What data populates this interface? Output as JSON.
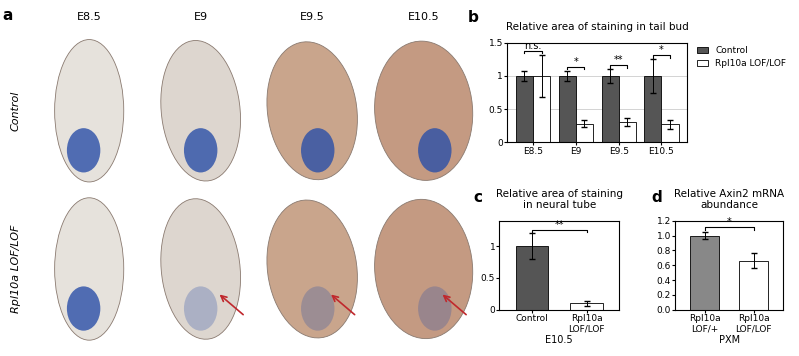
{
  "panel_a": {
    "label": "a",
    "columns": [
      "E8.5",
      "E9",
      "E9.5",
      "E10.5"
    ],
    "rows": [
      "Control",
      "Rpl10a LOF/LOF"
    ]
  },
  "chart_data": [
    {
      "panel": "b",
      "type": "bar",
      "title": "Relative area of staining in tail bud",
      "categories": [
        "E8.5",
        "E9",
        "E9.5",
        "E10.5"
      ],
      "series": [
        {
          "name": "Control",
          "color": "#555555",
          "values": [
            1.0,
            1.0,
            1.0,
            1.0
          ],
          "errors": [
            0.07,
            0.08,
            0.1,
            0.25
          ]
        },
        {
          "name": "Rpl10a LOF/LOF",
          "color": "#ffffff",
          "values": [
            1.0,
            0.28,
            0.3,
            0.27
          ],
          "errors": [
            0.32,
            0.05,
            0.06,
            0.07
          ]
        }
      ],
      "significance": [
        "n.s.",
        "*",
        "**",
        "*"
      ],
      "ylim": [
        0,
        1.5
      ],
      "yticks": [
        0,
        0.5,
        1,
        1.5
      ],
      "grid": true,
      "legend": "right"
    },
    {
      "panel": "c",
      "type": "bar",
      "title": "Relative area of staining\nin neural tube",
      "categories": [
        "Control",
        "Rpl10a LOF/LOF"
      ],
      "x_label": "E10.5",
      "values": [
        1.0,
        0.1
      ],
      "errors": [
        0.2,
        0.04
      ],
      "colors": [
        "#555555",
        "#ffffff"
      ],
      "significance": "**",
      "ylim": [
        0,
        1.4
      ],
      "yticks": [
        0,
        0.5,
        1
      ],
      "grid": false
    },
    {
      "panel": "d",
      "type": "bar",
      "title": "Relative Axin2 mRNA\nabundance",
      "categories": [
        "Rpl10a LOF/+",
        "Rpl10a LOF/LOF"
      ],
      "x_label": "PXM",
      "values": [
        1.0,
        0.66
      ],
      "errors": [
        0.05,
        0.1
      ],
      "colors": [
        "#888888",
        "#ffffff"
      ],
      "significance": "*",
      "ylim": [
        0,
        1.2
      ],
      "yticks": [
        {
          "value": 0,
          "label": "0.0"
        },
        {
          "value": 0.2,
          "label": "0.2"
        },
        {
          "value": 0.4,
          "label": "0.4"
        },
        {
          "value": 0.6,
          "label": "0.6"
        },
        {
          "value": 0.8,
          "label": "0.8"
        },
        {
          "value": 1.0,
          "label": "1.0"
        },
        {
          "value": 1.2,
          "label": "1.2"
        }
      ],
      "grid": false
    }
  ]
}
